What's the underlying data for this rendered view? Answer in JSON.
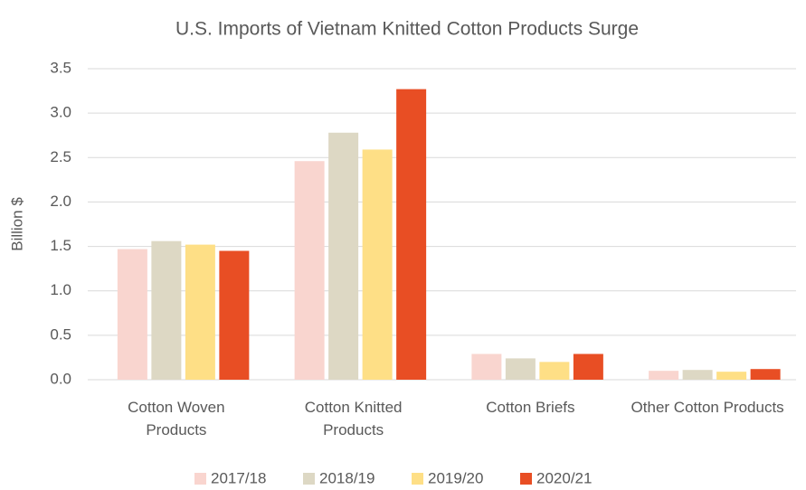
{
  "chart_data": {
    "type": "bar",
    "title": "U.S. Imports of Vietnam Knitted Cotton Products Surge",
    "y_label": "Billion $",
    "categories": [
      "Cotton Woven Products",
      "Cotton Knitted Products",
      "Cotton Briefs",
      "Other Cotton Products"
    ],
    "series": [
      {
        "name": "2017/18",
        "color": "#f9d5cf",
        "values": [
          1.47,
          2.46,
          0.29,
          0.1
        ]
      },
      {
        "name": "2018/19",
        "color": "#ddd8c4",
        "values": [
          1.56,
          2.78,
          0.24,
          0.11
        ]
      },
      {
        "name": "2019/20",
        "color": "#fedf86",
        "values": [
          1.52,
          2.59,
          0.2,
          0.09
        ]
      },
      {
        "name": "2020/21",
        "color": "#e84e24",
        "values": [
          1.45,
          3.27,
          0.29,
          0.12
        ]
      }
    ],
    "ylim": [
      0,
      3.5
    ],
    "yticks": [
      {
        "value": 0,
        "label": "0.0"
      },
      0.5,
      {
        "value": 1,
        "label": "1.0"
      },
      1.5,
      {
        "value": 2,
        "label": "2.0"
      },
      2.5,
      {
        "value": 3,
        "label": "3.0"
      },
      3.5
    ],
    "grid": true,
    "legend": "bottom"
  }
}
